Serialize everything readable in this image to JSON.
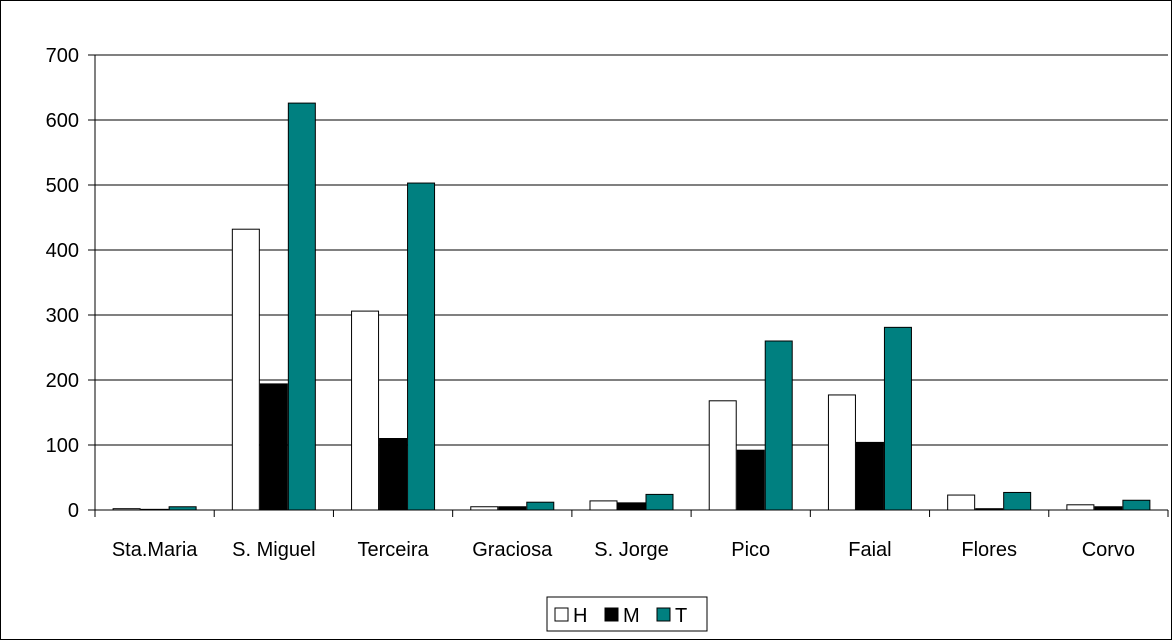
{
  "chart_data": {
    "type": "bar",
    "categories": [
      "Sta.Maria",
      "S. Miguel",
      "Terceira",
      "Graciosa",
      "S. Jorge",
      "Pico",
      "Faial",
      "Flores",
      "Corvo"
    ],
    "series": [
      {
        "name": "H",
        "values": [
          2,
          432,
          306,
          5,
          14,
          168,
          177,
          23,
          8
        ]
      },
      {
        "name": "M",
        "values": [
          1,
          194,
          110,
          5,
          11,
          92,
          104,
          2,
          5
        ]
      },
      {
        "name": "T",
        "values": [
          5,
          626,
          503,
          12,
          24,
          260,
          281,
          27,
          15
        ]
      }
    ],
    "series_colors": {
      "H": "#ffffff",
      "M": "#000000",
      "T": "#008080"
    },
    "title": "",
    "xlabel": "",
    "ylabel": "",
    "ylim": [
      0,
      700
    ],
    "yticks": [
      0,
      100,
      200,
      300,
      400,
      500,
      600,
      700
    ],
    "grid": true,
    "legend_position": "bottom-center"
  }
}
